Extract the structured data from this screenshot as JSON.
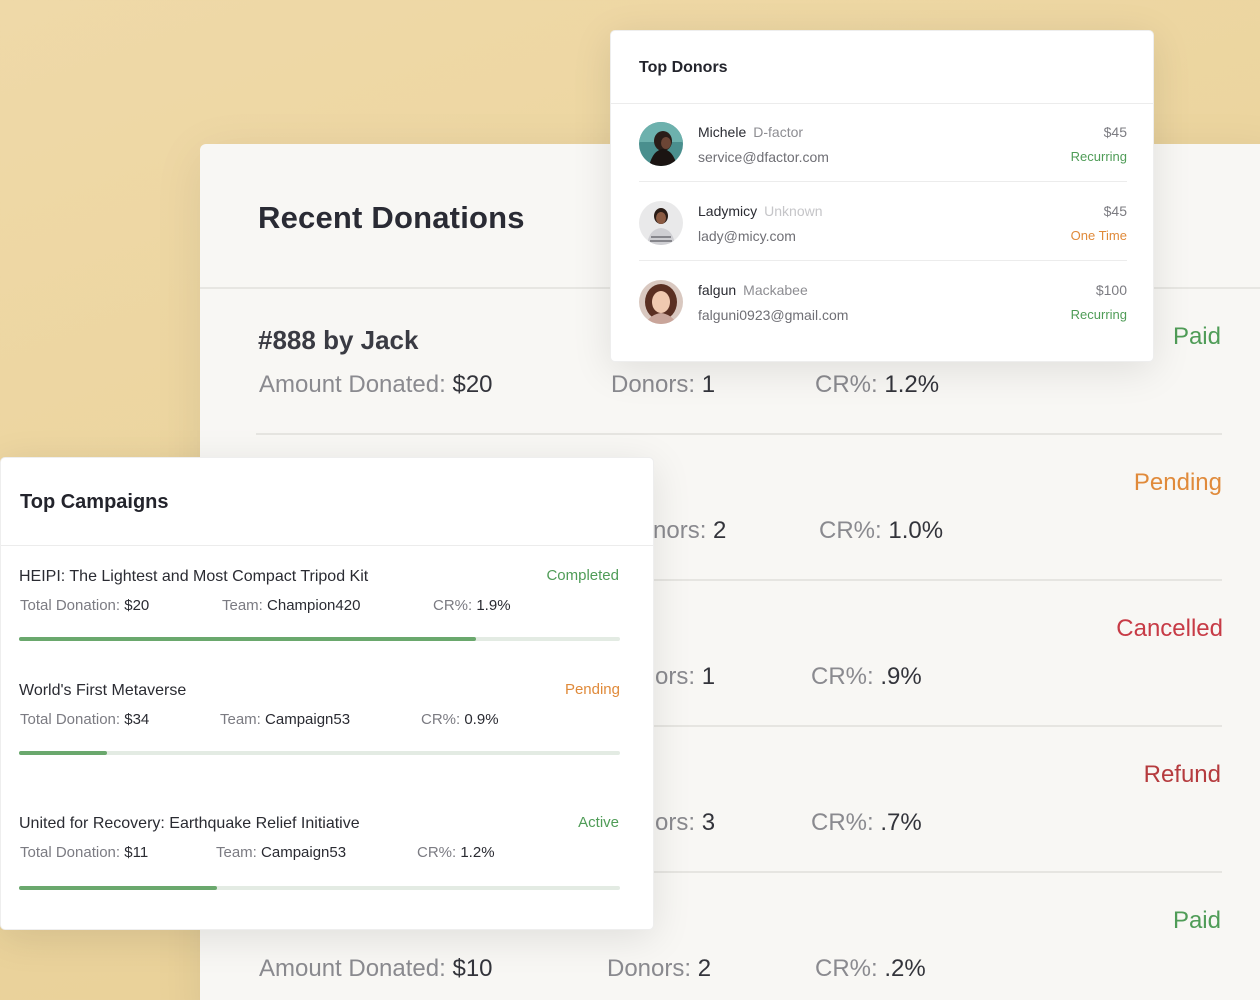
{
  "recent_donations": {
    "title": "Recent Donations",
    "rows": [
      {
        "title": "#888 by Jack",
        "amount_label": "Amount Donated:",
        "amount": "$20",
        "donors_label": "Donors:",
        "donors": "1",
        "cr_label": "CR%:",
        "cr": "1.2%",
        "status": "Paid",
        "status_color": "#4f9c57"
      },
      {
        "title": "",
        "amount_label": "",
        "amount": "",
        "donors_label": "nors:",
        "donors": "2",
        "cr_label": "CR%:",
        "cr": "1.0%",
        "status": "Pending",
        "status_color": "#e08a3a"
      },
      {
        "title": "",
        "amount_label": "",
        "amount": "",
        "donors_label": "ors:",
        "donors": "1",
        "cr_label": "CR%:",
        "cr": ".9%",
        "status": "Cancelled",
        "status_color": "#c73b46"
      },
      {
        "title": "",
        "amount_label": "",
        "amount": "",
        "donors_label": "ors:",
        "donors": "3",
        "cr_label": "CR%:",
        "cr": ".7%",
        "status": "Refund",
        "status_color": "#b53b3e"
      },
      {
        "title": "",
        "amount_label": "Amount Donated:",
        "amount": "$10",
        "donors_label": "Donors:",
        "donors": "2",
        "cr_label": "CR%:",
        "cr": ".2%",
        "status": "Paid",
        "status_color": "#4f9c57"
      }
    ]
  },
  "top_donors": {
    "title": "Top Donors",
    "donors": [
      {
        "name": "Michele",
        "org": "D-factor",
        "email": "service@dfactor.com",
        "amount": "$45",
        "type": "Recurring",
        "type_color": "#4f9c57"
      },
      {
        "name": "Ladymicy",
        "org": "Unknown",
        "email": "lady@micy.com",
        "amount": "$45",
        "type": "One Time",
        "type_color": "#e08a3a"
      },
      {
        "name": "falgun",
        "org": "Mackabee",
        "email": "falguni0923@gmail.com",
        "amount": "$100",
        "type": "Recurring",
        "type_color": "#4f9c57"
      }
    ]
  },
  "top_campaigns": {
    "title": "Top Campaigns",
    "total_label": "Total Donation:",
    "team_label": "Team:",
    "cr_label": "CR%:",
    "campaigns": [
      {
        "name": "HEIPI: The Lightest and Most Compact Tripod Kit",
        "status": "Completed",
        "status_color": "#4f9c57",
        "total": "$20",
        "team": "Champion420",
        "cr": "1.9%",
        "progress": 0.76
      },
      {
        "name": "World's First Metaverse",
        "status": "Pending",
        "status_color": "#e08a3a",
        "total": "$34",
        "team": "Campaign53",
        "cr": "0.9%",
        "progress": 0.147
      },
      {
        "name": "United for Recovery: Earthquake Relief Initiative",
        "status": "Active",
        "status_color": "#4f9c57",
        "total": "$11",
        "team": "Campaign53",
        "cr": "1.2%",
        "progress": 0.33
      }
    ]
  }
}
